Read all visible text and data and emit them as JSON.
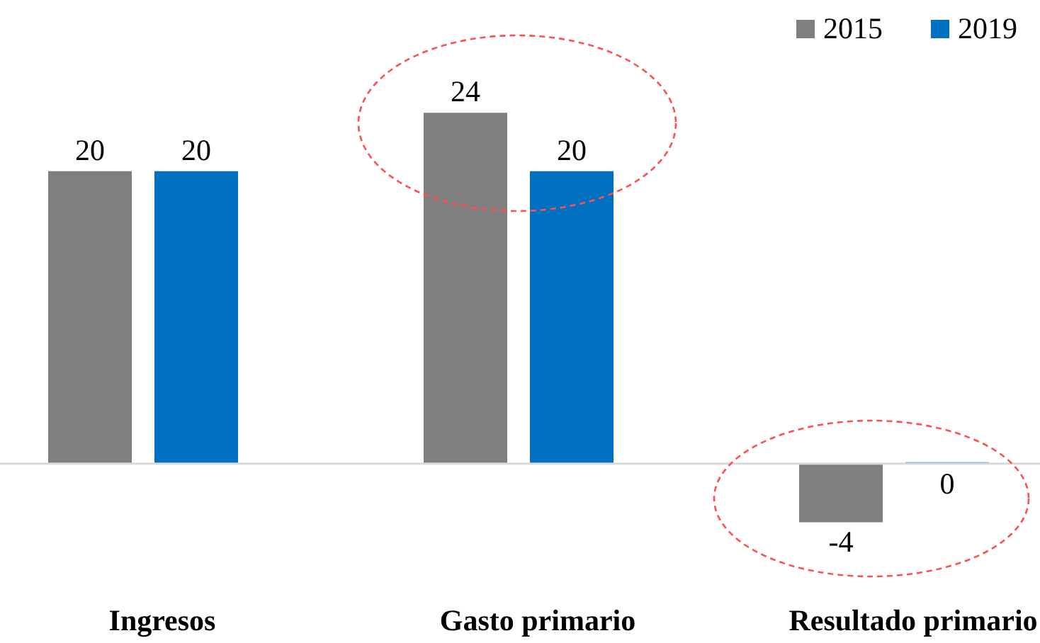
{
  "chart_data": {
    "type": "bar",
    "categories": [
      "Ingresos",
      "Gasto primario",
      "Resultado primario"
    ],
    "series": [
      {
        "name": "2015",
        "color": "#7f7f7f",
        "values": [
          20,
          24,
          -4
        ]
      },
      {
        "name": "2019",
        "color": "#0070c0",
        "values": [
          20,
          20,
          0
        ]
      }
    ],
    "data_labels": true,
    "legend": "top right",
    "tick_labels": "x"
  }
}
